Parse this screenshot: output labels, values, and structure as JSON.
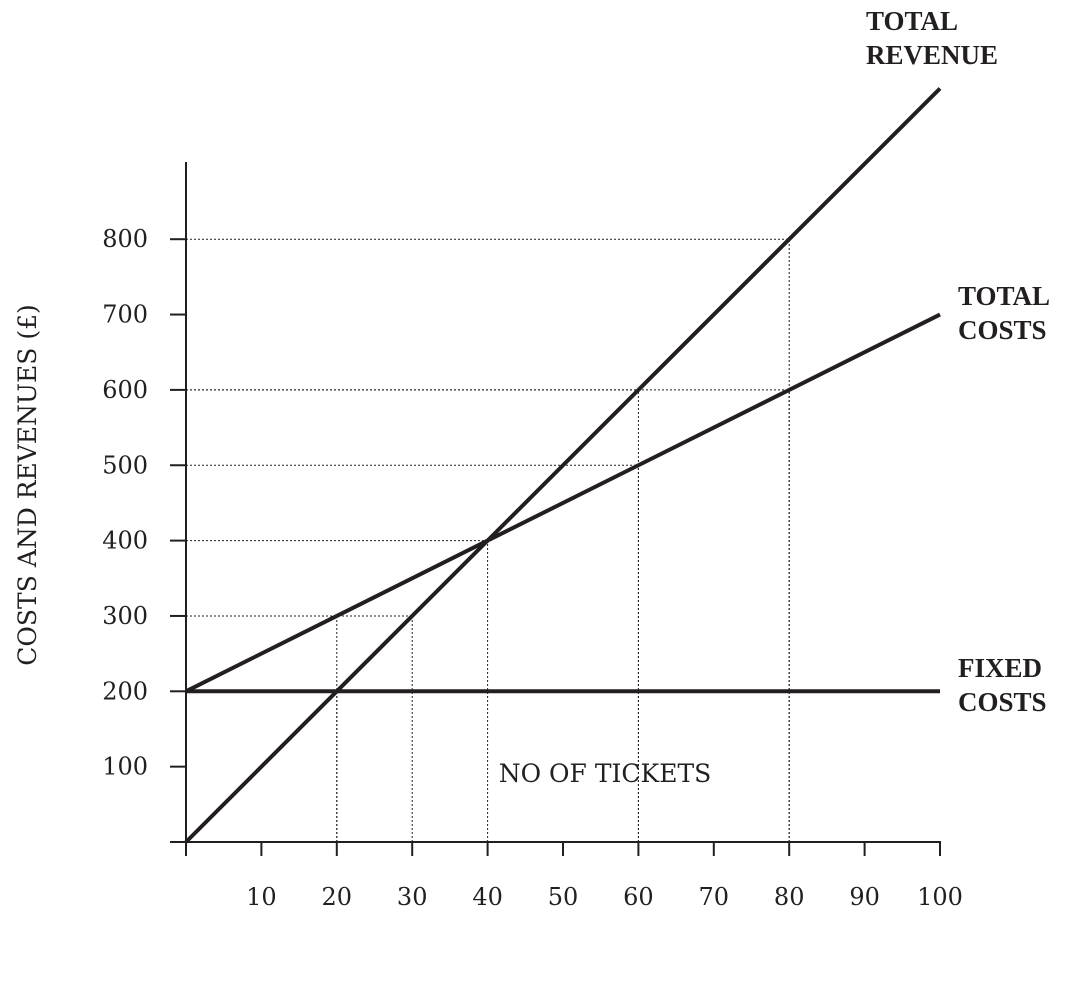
{
  "chart_data": {
    "type": "line",
    "title": "",
    "xlabel": "NO OF TICKETS",
    "ylabel": "COSTS AND REVENUES (£)",
    "xlim": [
      0,
      100
    ],
    "ylim": [
      0,
      800
    ],
    "x_ticks": [
      10,
      20,
      30,
      40,
      50,
      60,
      70,
      80,
      90,
      100
    ],
    "y_ticks": [
      100,
      200,
      300,
      400,
      500,
      600,
      700,
      800
    ],
    "grid": false,
    "series": [
      {
        "name": "TOTAL REVENUE",
        "label_lines": [
          "TOTAL",
          "REVENUE"
        ],
        "x": [
          0,
          100
        ],
        "y": [
          0,
          1000
        ]
      },
      {
        "name": "TOTAL COSTS",
        "label_lines": [
          "TOTAL",
          "COSTS"
        ],
        "x": [
          0,
          100
        ],
        "y": [
          200,
          700
        ]
      },
      {
        "name": "FIXED COSTS",
        "label_lines": [
          "FIXED",
          "COSTS"
        ],
        "x": [
          0,
          100
        ],
        "y": [
          200,
          200
        ]
      }
    ],
    "reference_lines": [
      {
        "x": 20,
        "y": 300
      },
      {
        "x": 30,
        "y": 300
      },
      {
        "x": 40,
        "y": 400
      },
      {
        "x": 60,
        "y": 600
      },
      {
        "x": 80,
        "y": 800
      },
      {
        "x": 60,
        "y": 500
      },
      {
        "x": 20,
        "y": 200
      },
      {
        "x": 80,
        "y": 600
      }
    ],
    "colors": {
      "ink": "#231f20"
    }
  }
}
